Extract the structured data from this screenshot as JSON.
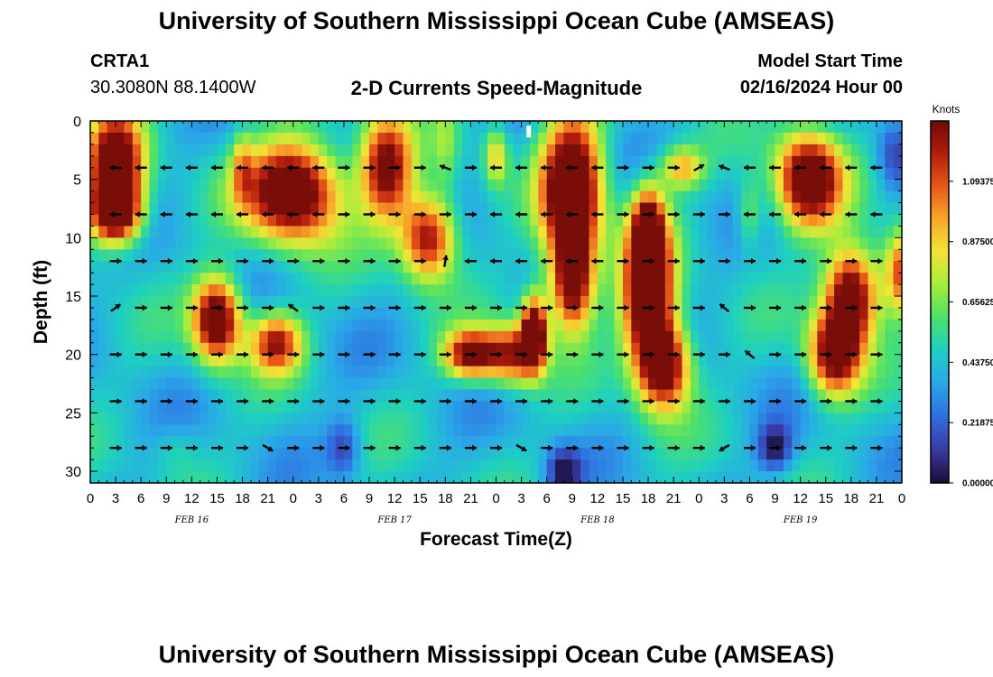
{
  "page": {
    "title_top": "University of Southern Mississippi Ocean Cube (AMSEAS)",
    "title_bottom": "University of Southern Mississippi Ocean Cube (AMSEAS)",
    "station_id": "CRTA1",
    "station_coords": "30.3080N  88.1400W",
    "plot_subtitle": "2-D Currents Speed-Magnitude",
    "model_start_label": "Model Start Time",
    "model_start_value": "02/16/2024 Hour 00"
  },
  "chart_data": {
    "type": "heatmap",
    "title": "2-D Currents Speed-Magnitude",
    "xlabel": "Forecast Time(Z)",
    "ylabel": "Depth (ft)",
    "x_ticks": [
      "0",
      "3",
      "6",
      "9",
      "12",
      "15",
      "18",
      "21",
      "0",
      "3",
      "6",
      "9",
      "12",
      "15",
      "18",
      "21",
      "0",
      "3",
      "6",
      "9",
      "12",
      "15",
      "18",
      "21",
      "0",
      "3",
      "6",
      "9",
      "12",
      "15",
      "18",
      "21",
      "0"
    ],
    "date_labels": [
      "FEB 16",
      "FEB 17",
      "FEB 18",
      "FEB 19"
    ],
    "y_ticks": [
      "0",
      "5",
      "10",
      "15",
      "20",
      "25",
      "30"
    ],
    "ylim_ft": [
      0,
      31
    ],
    "xlim_hours": [
      0,
      96
    ],
    "colorbar": {
      "unit": "Knots",
      "ticks": [
        "0.000000",
        "0.218750",
        "0.437500",
        "0.656250",
        "0.875000",
        "1.093750"
      ],
      "range": [
        0,
        1.3125
      ],
      "colors": [
        "#1a0f3f",
        "#3b3ba5",
        "#2f6fe0",
        "#2aa8e8",
        "#1ed0c0",
        "#4ee06a",
        "#a8ec3c",
        "#f2e436",
        "#f7a52a",
        "#e8561a",
        "#b01c0c",
        "#6a0a08"
      ]
    },
    "depth_levels_ft": [
      4,
      8,
      12,
      16,
      20,
      24,
      28
    ],
    "time_step_hours": 3,
    "arrow_direction": "mostly east-west (left/right), some north-east and north-west vectors"
  }
}
